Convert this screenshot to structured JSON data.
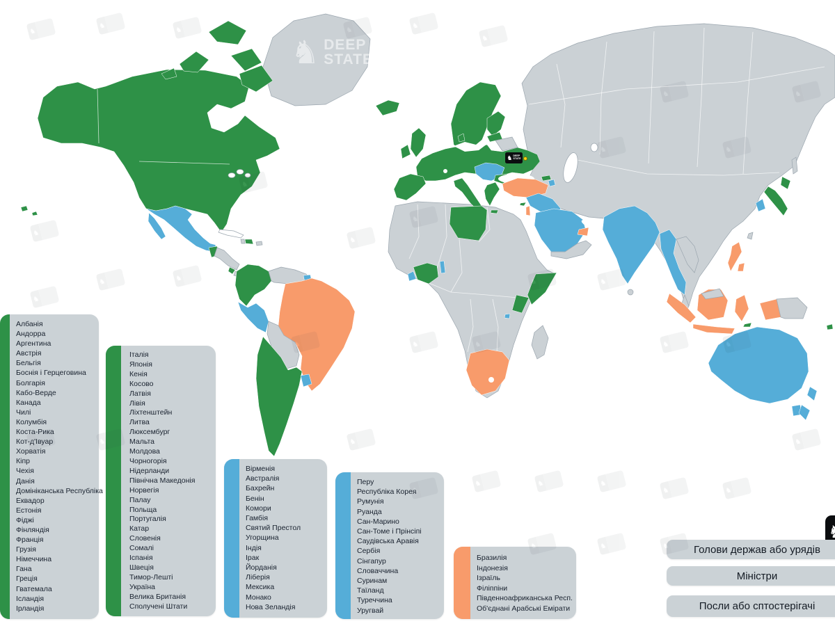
{
  "colors": {
    "heads_of_state": "#2E9147",
    "ministers": "#55ADD8",
    "ambassadors_or_observers": "#F89B6B",
    "no_participation_land": "#CBD1D5",
    "panel_background": "#CBD2D6",
    "ocean": "#FFFFFF",
    "badge_black": "#0B0D0F"
  },
  "brand": {
    "watermark_line1": "DEEP",
    "watermark_line2": "STATE",
    "knight_icon": "chess-knight-icon"
  },
  "legend": {
    "items": [
      {
        "label": "Голови держав або урядів",
        "color": "#2E9147"
      },
      {
        "label": "Міністри",
        "color": "#55ADD8"
      },
      {
        "label": "Посли або сптостерігачі",
        "color": "#F89B6B"
      }
    ]
  },
  "lists": {
    "heads_col1": {
      "category": "heads_of_state",
      "color": "#2E9147",
      "items": [
        "Албанія",
        "Андорра",
        "Аргентина",
        "Австрія",
        "Бельгія",
        "Боснія і Герцеговина",
        "Болгарія",
        "Кабо-Верде",
        "Канада",
        "Чилі",
        "Колумбія",
        "Коста-Рика",
        "Кот-д'Івуар",
        "Хорватія",
        "Кіпр",
        "Чехія",
        "Данія",
        "Домініканська Республіка",
        "Еквадор",
        "Естонія",
        "Фіджі",
        "Фінляндія",
        "Франція",
        "Грузія",
        "Німеччина",
        "Гана",
        "Греція",
        "Гватемала",
        "Ісландія",
        "Ірландія"
      ]
    },
    "heads_col2": {
      "category": "heads_of_state",
      "color": "#2E9147",
      "items": [
        "Італія",
        "Японія",
        "Кенія",
        "Косово",
        "Латвія",
        "Лівія",
        "Ліхтенштейн",
        "Литва",
        "Люксембург",
        "Мальта",
        "Молдова",
        "Чорногорія",
        "Нідерланди",
        "Північна Македонія",
        "Норвегія",
        "Палау",
        "Польща",
        "Португалія",
        "Катар",
        "Словенія",
        "Сомалі",
        "Іспанія",
        "Швеція",
        "Тимор-Лешті",
        "Україна",
        "Велика Британія",
        "Сполучені Штати"
      ]
    },
    "ministers_col1": {
      "category": "ministers",
      "color": "#55ADD8",
      "items": [
        "Вірменія",
        "Австралія",
        "Бахрейн",
        "Бенін",
        "Комори",
        "Гамбія",
        "Святий Престол",
        "Угорщина",
        "Індія",
        "Ірак",
        "Йорданія",
        "Ліберія",
        "Мексика",
        "Монако",
        "Нова Зеландія"
      ]
    },
    "ministers_col2": {
      "category": "ministers",
      "color": "#55ADD8",
      "items": [
        "Перу",
        "Республіка Корея",
        "Румунія",
        "Руанда",
        "Сан-Марино",
        "Сан-Томе і Прінсіпі",
        "Саудівська Аравія",
        "Сербія",
        "Сінгапур",
        "Словаччина",
        "Суринам",
        "Таїланд",
        "Туреччина",
        "Уругвай"
      ]
    },
    "ambassadors": {
      "category": "ambassadors_or_observers",
      "color": "#F89B6B",
      "items": [
        "Бразилія",
        "Індонезія",
        "Ізраїль",
        "Філіппіни",
        "Південноафриканська Респ.",
        "Об'єднані Арабські Емірати"
      ]
    }
  }
}
